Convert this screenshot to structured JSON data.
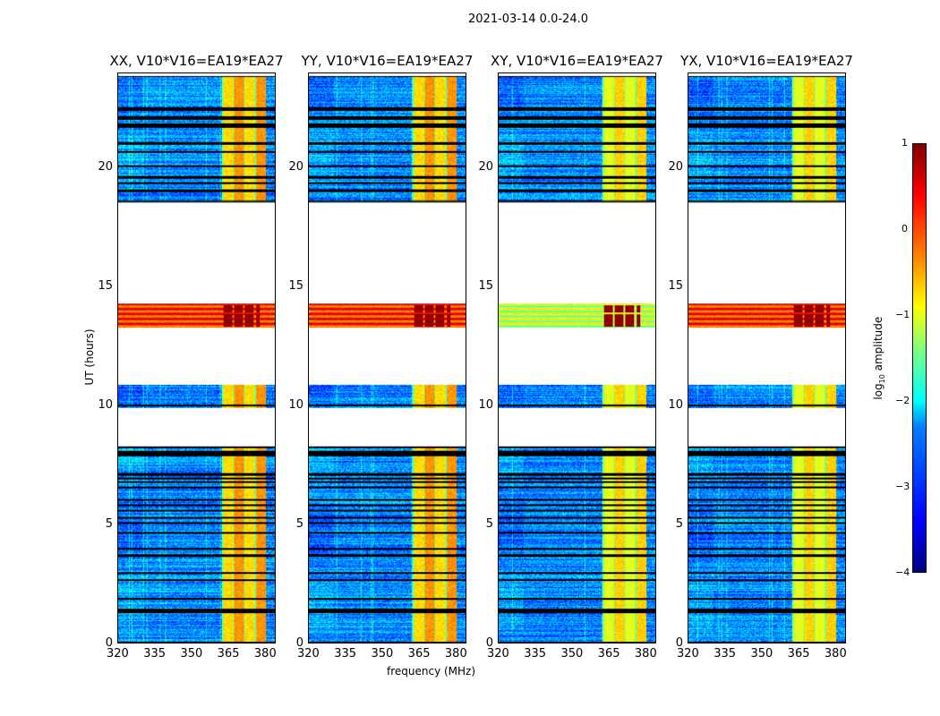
{
  "suptitle": "2021-03-14 0.0-24.0",
  "chart_data": {
    "type": "heatmap",
    "panels": [
      {
        "title": "XX, V10*V16=EA19*EA27"
      },
      {
        "title": "YY, V10*V16=EA19*EA27"
      },
      {
        "title": "XY, V10*V16=EA19*EA27"
      },
      {
        "title": "YX, V10*V16=EA19*EA27"
      }
    ],
    "xlabel": "frequency (MHz)",
    "ylabel": "UT (hours)",
    "xlim": [
      320,
      384.4
    ],
    "ylim": [
      0,
      24
    ],
    "xticks": [
      "320",
      "335",
      "350",
      "365",
      "380"
    ],
    "xtick_values": [
      320,
      335,
      350,
      365,
      380
    ],
    "yticks": [
      "0",
      "5",
      "10",
      "15",
      "20"
    ],
    "ytick_values": [
      0,
      5,
      10,
      15,
      20
    ],
    "data_segments_hours": [
      [
        0,
        8.3
      ],
      [
        9.9,
        10.0
      ],
      [
        10.0,
        10.9
      ],
      [
        13.3,
        14.3
      ],
      [
        18.6,
        23.9
      ]
    ],
    "rfi_band_mhz": [
      362.5,
      380.5
    ],
    "flare_hours": [
      13.3,
      14.3
    ],
    "colorbar": {
      "label": "log10 amplitude",
      "label_main": "log",
      "label_sub": "10",
      "label_rest": " amplitude",
      "range": [
        -4,
        1
      ],
      "ticks": [
        "1",
        "0",
        "−1",
        "−2",
        "−3",
        "−4"
      ],
      "tick_values": [
        1,
        0,
        -1,
        -2,
        -3,
        -4
      ],
      "colormap": "jet"
    }
  }
}
